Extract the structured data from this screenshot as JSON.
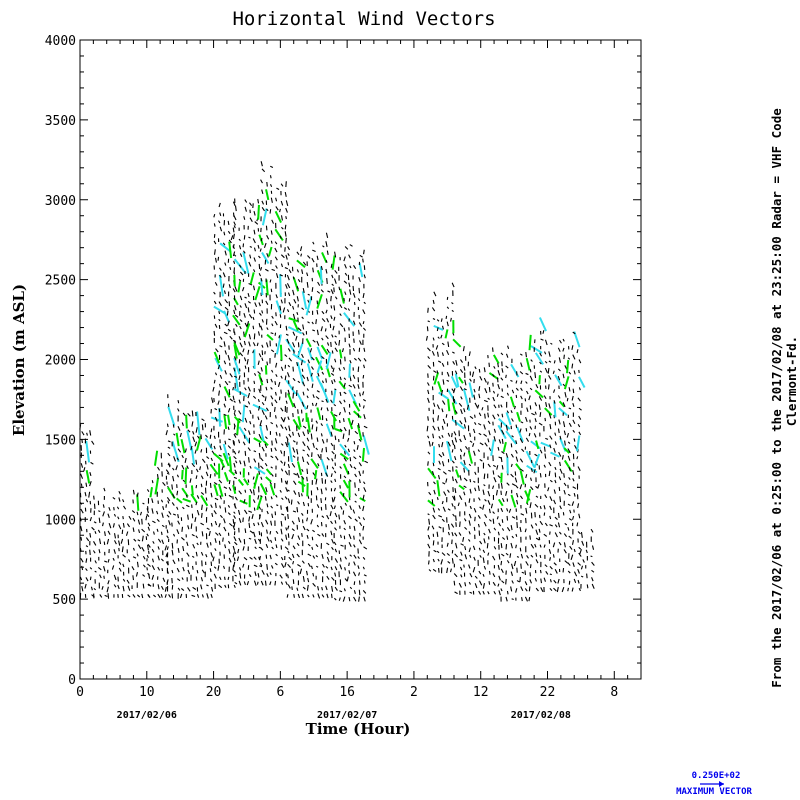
{
  "chart_data": {
    "type": "scatter",
    "title": "Horizontal Wind Vectors",
    "xlabel": "Time (Hour)",
    "ylabel": "Elevation (m ASL)",
    "xlim": [
      0,
      84
    ],
    "ylim": [
      0,
      4000
    ],
    "x_ticks": [
      0,
      10,
      20,
      30,
      40,
      50,
      60,
      70,
      80
    ],
    "x_tick_labels": [
      "0",
      "10",
      "20",
      "6",
      "16",
      "2",
      "12",
      "22",
      "8"
    ],
    "y_ticks": [
      0,
      500,
      1000,
      1500,
      2000,
      2500,
      3000,
      3500,
      4000
    ],
    "y_tick_labels": [
      "0",
      "500",
      "1000",
      "1500",
      "2000",
      "2500",
      "3000",
      "3500",
      "4000"
    ],
    "date_labels": [
      {
        "x": 10,
        "text": "2017/02/06"
      },
      {
        "x": 40,
        "text": "2017/02/07"
      },
      {
        "x": 69,
        "text": "2017/02/08"
      }
    ],
    "side_text": "From the 2017/02/06 at  0:25:00 to the 2017/02/08 at 23:25:00 Radar = VHF Code",
    "side_text_2": "Clermont-Fd.",
    "max_vector_value": "0.250E+02",
    "max_vector_label": "MAXIMUM VECTOR",
    "colors": {
      "calm": "#000000",
      "moderate": "#00dd00",
      "strong": "#33ddee",
      "max_vector": "#0000ee"
    },
    "series": [
      {
        "name": "",
        "x_range": [
          0,
          2
        ],
        "y_range": [
          520,
          1750
        ]
      },
      {
        "name": "",
        "x_range": [
          2,
          10
        ],
        "y_range": [
          520,
          1200
        ]
      },
      {
        "name": "",
        "x_range": [
          10,
          13
        ],
        "y_range": [
          520,
          1400
        ]
      },
      {
        "name": "",
        "x_range": [
          13,
          20
        ],
        "y_range": [
          520,
          1800
        ]
      },
      {
        "name": "",
        "x_range": [
          20,
          23
        ],
        "y_range": [
          580,
          3020
        ]
      },
      {
        "name": "",
        "x_range": [
          23,
          27
        ],
        "y_range": [
          600,
          3050
        ]
      },
      {
        "name": "",
        "x_range": [
          27,
          31
        ],
        "y_range": [
          600,
          3280
        ]
      },
      {
        "name": "",
        "x_range": [
          31,
          38
        ],
        "y_range": [
          520,
          2800
        ]
      },
      {
        "name": "",
        "x_range": [
          38,
          43
        ],
        "y_range": [
          500,
          2800
        ]
      },
      {
        "name": "",
        "x_range": [
          52,
          56
        ],
        "y_range": [
          680,
          2480
        ]
      },
      {
        "name": "",
        "x_range": [
          56,
          63
        ],
        "y_range": [
          540,
          2100
        ]
      },
      {
        "name": "",
        "x_range": [
          63,
          68
        ],
        "y_range": [
          500,
          2150
        ]
      },
      {
        "name": "",
        "x_range": [
          68,
          75
        ],
        "y_range": [
          560,
          2250
        ]
      },
      {
        "name": "",
        "x_range": [
          75,
          76.5
        ],
        "y_range": [
          580,
          1050
        ]
      }
    ]
  }
}
